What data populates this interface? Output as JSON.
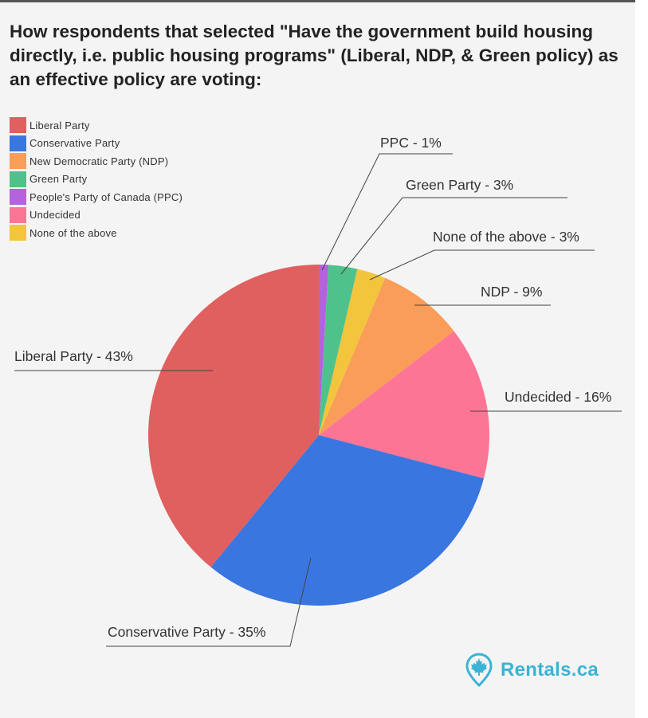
{
  "chart_data": {
    "type": "pie",
    "title": "How respondents that selected \"Have the government build housing directly, i.e. public housing programs\" (Liberal, NDP, & Green policy) as an effective policy are voting:",
    "legend_position": "top-left",
    "slices": [
      {
        "name": "Liberal Party",
        "value": 43,
        "color": "#e05f5f",
        "callout": "Liberal Party  - 43%"
      },
      {
        "name": "Conservative Party",
        "value": 35,
        "color": "#3a76e0",
        "callout": "Conservative Party  - 35%"
      },
      {
        "name": "New Democratic Party (NDP)",
        "value": 9,
        "color": "#f99d59",
        "callout": "NDP - 9%"
      },
      {
        "name": "Green Party",
        "value": 3,
        "color": "#4fc28c",
        "callout": "Green Party - 3%"
      },
      {
        "name": "People's Party of Canada (PPC)",
        "value": 1,
        "color": "#b562dd",
        "callout": "PPC - 1%"
      },
      {
        "name": "Undecided",
        "value": 16,
        "color": "#fd7595",
        "callout": "Undecided - 16%"
      },
      {
        "name": "None of the above",
        "value": 3,
        "color": "#f2c53c",
        "callout": "None of the above - 3%"
      }
    ]
  },
  "brand": {
    "name": "Rentals.ca",
    "icon": "maple-leaf-pin-icon",
    "color": "#3ab3d6"
  }
}
